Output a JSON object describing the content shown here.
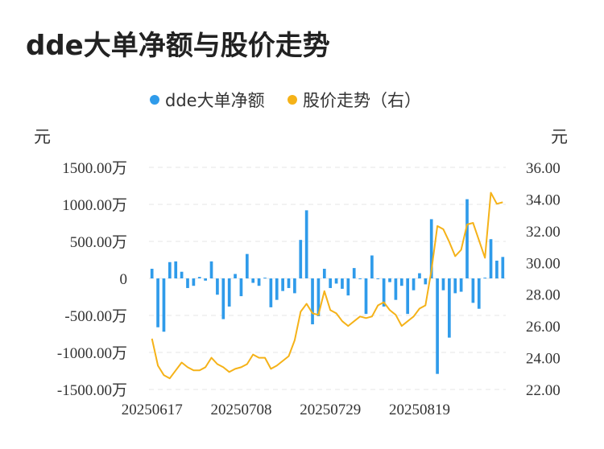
{
  "chart_data": {
    "type": "bar",
    "title": "dde大单净额与股价走势",
    "left_unit": "元",
    "right_unit": "元",
    "legend": [
      {
        "name": "dde大单净额",
        "color": "#2f9bea",
        "marker": "dot"
      },
      {
        "name": "股价走势（右）",
        "color": "#f5b218",
        "marker": "dot"
      }
    ],
    "y_left": {
      "ylim": [
        -1500,
        1500
      ],
      "ticks": [
        1500,
        1000,
        500,
        0,
        -500,
        -1000,
        -1500
      ],
      "tick_labels": [
        "1500.00万",
        "1000.00万",
        "500.00万",
        "0",
        "-500.00万",
        "-1000.00万",
        "-1500.00万"
      ]
    },
    "y_right": {
      "ylim": [
        22,
        36
      ],
      "ticks": [
        36,
        34,
        32,
        30,
        28,
        26,
        24,
        22
      ],
      "tick_labels": [
        "36.00",
        "34.00",
        "32.00",
        "30.00",
        "28.00",
        "26.00",
        "24.00",
        "22.00"
      ]
    },
    "x_tick_labels": [
      {
        "label": "20250617",
        "index": 0
      },
      {
        "label": "20250708",
        "index": 15
      },
      {
        "label": "20250729",
        "index": 30
      },
      {
        "label": "20250819",
        "index": 45
      }
    ],
    "grid": true,
    "legend_position": "top-center",
    "series": [
      {
        "name": "dde大单净额",
        "axis": "left",
        "type": "bar",
        "color": "#2f9bea",
        "values": [
          130,
          -660,
          -720,
          220,
          230,
          90,
          -130,
          -100,
          20,
          -30,
          230,
          -220,
          -550,
          -380,
          60,
          -240,
          330,
          -60,
          -100,
          10,
          -390,
          -290,
          -170,
          -130,
          -200,
          520,
          920,
          -620,
          -510,
          130,
          -130,
          -70,
          -140,
          -230,
          140,
          -10,
          -480,
          310,
          -10,
          -380,
          -50,
          -290,
          -100,
          -480,
          -160,
          70,
          -80,
          800,
          -1290,
          -160,
          -800,
          -200,
          -180,
          1070,
          -330,
          -410,
          10,
          530,
          240,
          290
        ]
      },
      {
        "name": "股价走势（右）",
        "axis": "right",
        "type": "line",
        "color": "#f5b218",
        "values": [
          25.2,
          23.5,
          22.9,
          22.7,
          23.2,
          23.7,
          23.4,
          23.2,
          23.2,
          23.4,
          24.0,
          23.6,
          23.4,
          23.1,
          23.3,
          23.4,
          23.6,
          24.2,
          24.0,
          24.0,
          23.3,
          23.5,
          23.8,
          24.1,
          25.1,
          26.9,
          27.4,
          26.8,
          26.7,
          28.2,
          27.0,
          26.8,
          26.3,
          26.0,
          26.3,
          26.6,
          26.5,
          26.6,
          27.3,
          27.5,
          27.0,
          26.7,
          26.0,
          26.3,
          26.6,
          27.1,
          27.3,
          29.5,
          32.3,
          32.1,
          31.3,
          30.4,
          30.8,
          32.4,
          32.5,
          31.4,
          30.3,
          34.4,
          33.7,
          33.8
        ]
      }
    ]
  }
}
